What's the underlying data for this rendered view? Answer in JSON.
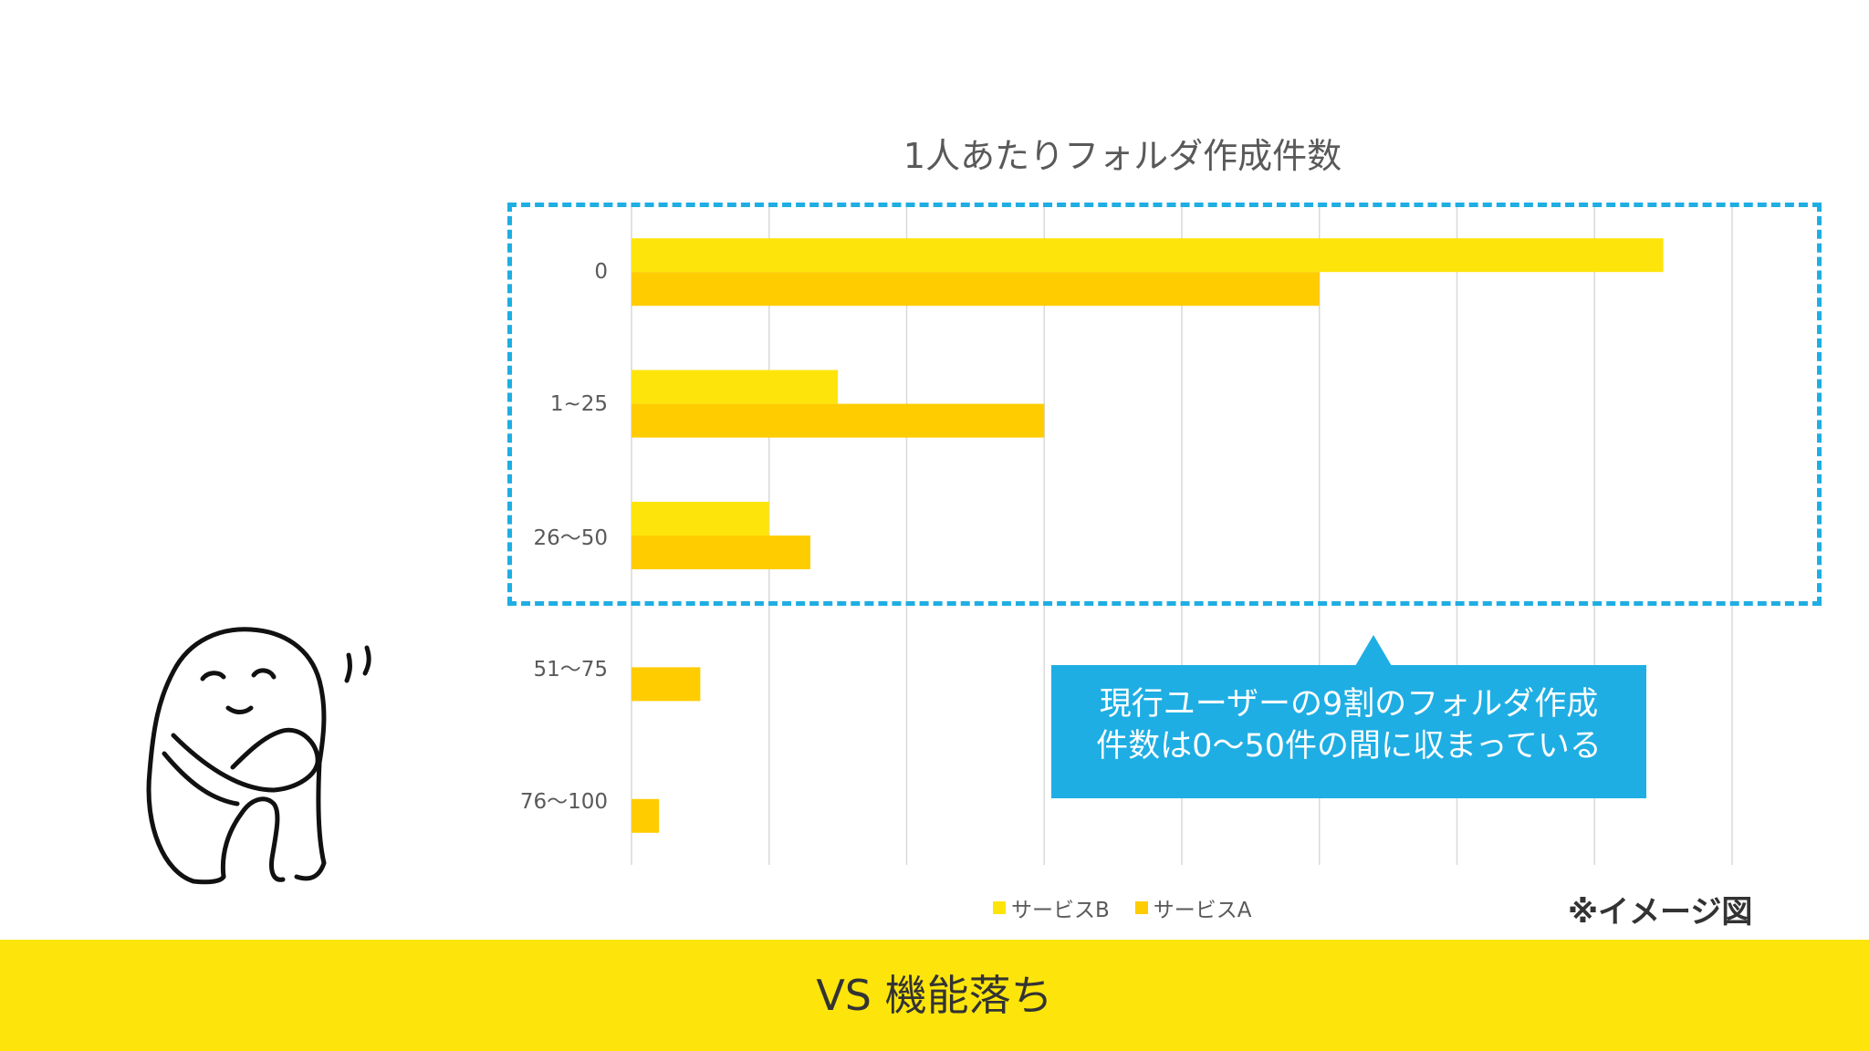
{
  "chart_data": {
    "type": "bar",
    "orientation": "horizontal",
    "title": "1人あたりフォルダ作成件数",
    "categories": [
      "0",
      "1~25",
      "26〜50",
      "51〜75",
      "76〜100"
    ],
    "series": [
      {
        "name": "サービスB",
        "color": "#fde50b",
        "values": [
          75,
          15,
          10,
          0,
          0
        ]
      },
      {
        "name": "サービスA",
        "color": "#ffcc00",
        "values": [
          50,
          30,
          13,
          5,
          2
        ]
      }
    ],
    "xlim": [
      0,
      80
    ],
    "gridlines": [
      0,
      10,
      20,
      30,
      40,
      50,
      60,
      70,
      80
    ],
    "grid": true,
    "xaxis_tick_labels_visible": false,
    "legend_position": "bottom"
  },
  "callout": {
    "line1": "現行ユーザーの9割のフォルダ作成",
    "line2": "件数は0〜50件の間に収まっている"
  },
  "note": "※イメージ図",
  "footer": {
    "text": "VS 機能落ち"
  },
  "colors": {
    "highlight_border": "#1eaee3",
    "callout_bg": "#1eaee3",
    "footer_bg": "#fde50b"
  },
  "illustration": {
    "icon": "hugging-knees-figure-icon"
  }
}
